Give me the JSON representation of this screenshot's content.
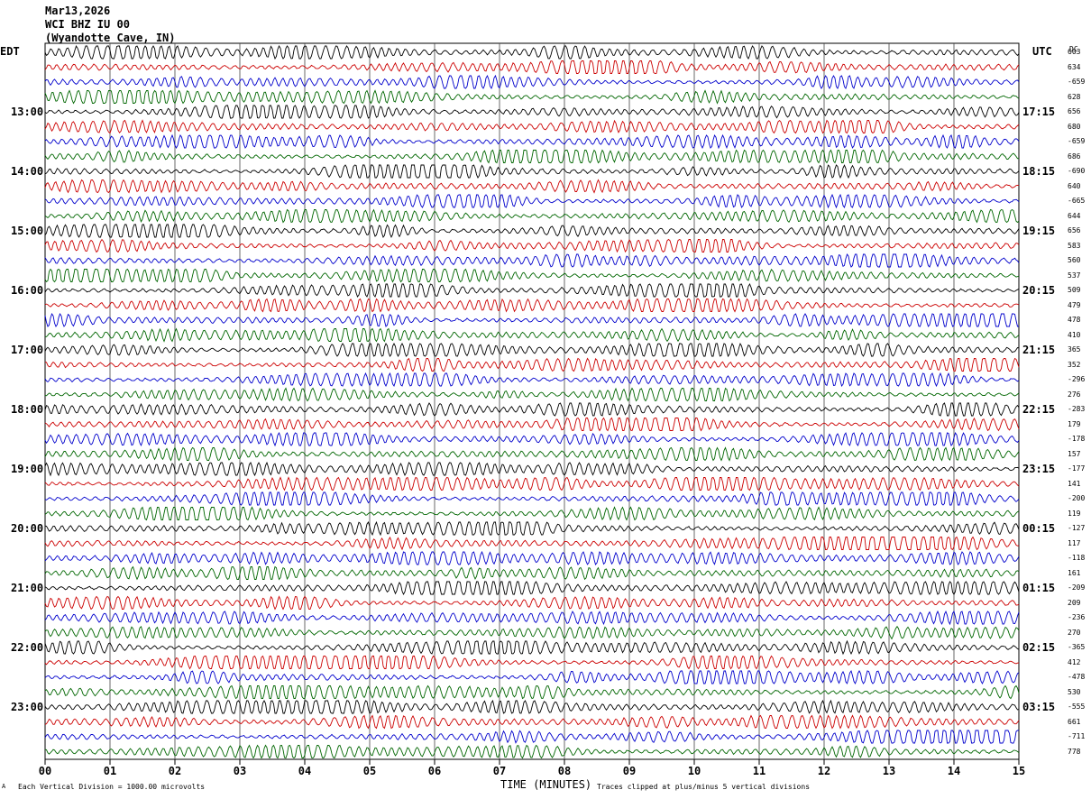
{
  "header": {
    "date": "Mar13,2026",
    "station": "WCI BHZ IU 00",
    "location": "(Wyandotte Cave, IN)"
  },
  "left_tz": "EDT",
  "right_tz": "UTC",
  "dc_label": "DC",
  "footer": {
    "scale_note": "Each Vertical Division = 1000.00 microvolts",
    "xaxis_label": "TIME (MINUTES)",
    "clip_note": "Traces clipped at plus/minus 5 vertical divisions",
    "corner_mark": "A"
  },
  "colors": {
    "trace_cycle": [
      "#000000",
      "#cc0000",
      "#0000cc",
      "#006600"
    ],
    "grid": "#000000"
  },
  "chart_data": {
    "type": "line",
    "title": "WCI BHZ IU 00 (Wyandotte Cave, IN)",
    "xlabel": "TIME (MINUTES)",
    "xlim": [
      0,
      15
    ],
    "x_ticks": [
      "00",
      "01",
      "02",
      "03",
      "04",
      "05",
      "06",
      "07",
      "08",
      "09",
      "10",
      "11",
      "12",
      "13",
      "14",
      "15"
    ],
    "trace_count": 48,
    "left_hour_labels": [
      "13:00",
      "14:00",
      "15:00",
      "16:00",
      "17:00",
      "18:00",
      "19:00",
      "20:00",
      "21:00",
      "22:00",
      "23:00"
    ],
    "right_hour_labels": [
      "17:15",
      "18:15",
      "19:15",
      "20:15",
      "21:15",
      "22:15",
      "23:15",
      "00:15",
      "01:15",
      "02:15",
      "03:15"
    ],
    "dc_values": [
      "603",
      "634",
      "-659",
      "628",
      "656",
      "680",
      "-659",
      "686",
      "-690",
      "640",
      "-665",
      "644",
      "656",
      "583",
      "560",
      "537",
      "509",
      "479",
      "478",
      "410",
      "365",
      "352",
      "-296",
      "276",
      "-283",
      "179",
      "-178",
      "157",
      "-177",
      "141",
      "-200",
      "119",
      "-127",
      "117",
      "-118",
      "161",
      "-209",
      "209",
      "-236",
      "270",
      "-365",
      "412",
      "-478",
      "530",
      "-555",
      "661",
      "-711",
      "778"
    ],
    "vertical_division_microvolts": 1000.0
  }
}
